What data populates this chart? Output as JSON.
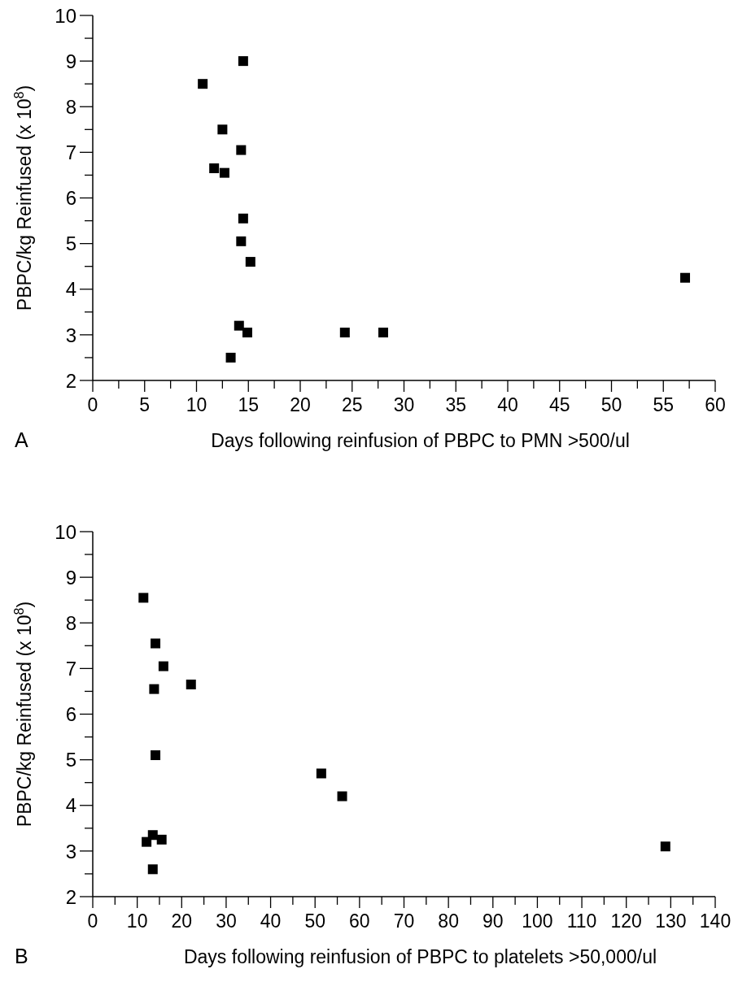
{
  "chart_data": [
    {
      "type": "scatter",
      "xlabel": "Days following reinfusion of PBPC to PMN >500/ul",
      "ylabel": "PBPC/kg Reinfused (x 10$^{8}$)",
      "annotations": [
        "A"
      ],
      "marker": "square",
      "grid": false,
      "xlim": [
        0,
        60
      ],
      "xticks": [
        0,
        {
          "value": 2.5,
          "label": null
        },
        5,
        {
          "value": 7.5,
          "label": null
        },
        10,
        {
          "value": 12.5,
          "label": null
        },
        15,
        {
          "value": 17.5,
          "label": null
        },
        20,
        {
          "value": 22.5,
          "label": null
        },
        25,
        {
          "value": 27.5,
          "label": null
        },
        30,
        {
          "value": 32.5,
          "label": null
        },
        35,
        {
          "value": 37.5,
          "label": null
        },
        40,
        {
          "value": 42.5,
          "label": null
        },
        45,
        {
          "value": 47.5,
          "label": null
        },
        50,
        {
          "value": 52.5,
          "label": null
        },
        55,
        {
          "value": 57.5,
          "label": null
        },
        60
      ],
      "ylim": [
        2,
        10
      ],
      "yticks": [
        2,
        {
          "value": 2.5,
          "label": null
        },
        3,
        {
          "value": 3.5,
          "label": null
        },
        4,
        {
          "value": 4.5,
          "label": null
        },
        5,
        {
          "value": 5.5,
          "label": null
        },
        6,
        {
          "value": 6.5,
          "label": null
        },
        7,
        {
          "value": 7.5,
          "label": null
        },
        8,
        {
          "value": 8.5,
          "label": null
        },
        9,
        {
          "value": 9.5,
          "label": null
        },
        10
      ],
      "series": [
        {
          "color": "#000000",
          "x": [
            10.6,
            14.5,
            12.5,
            14.3,
            11.7,
            12.7,
            14.5,
            14.3,
            15.2,
            14.1,
            14.9,
            13.3,
            24.3,
            28.0,
            57.1
          ],
          "values": [
            8.5,
            9.0,
            7.5,
            7.05,
            6.65,
            6.55,
            5.55,
            5.05,
            4.6,
            3.2,
            3.05,
            2.5,
            3.05,
            3.05,
            4.25
          ]
        }
      ]
    },
    {
      "type": "scatter",
      "xlabel": "Days following reinfusion of PBPC to platelets >50,000/ul",
      "ylabel": "PBPC/kg Reinfused (x 10$^{8}$)",
      "annotations": [
        "B"
      ],
      "marker": "square",
      "grid": false,
      "xlim": [
        0,
        140
      ],
      "xticks": [
        0,
        {
          "value": 5,
          "label": null
        },
        10,
        {
          "value": 15,
          "label": null
        },
        20,
        {
          "value": 25,
          "label": null
        },
        30,
        {
          "value": 35,
          "label": null
        },
        40,
        {
          "value": 45,
          "label": null
        },
        50,
        {
          "value": 55,
          "label": null
        },
        60,
        {
          "value": 65,
          "label": null
        },
        70,
        {
          "value": 75,
          "label": null
        },
        80,
        {
          "value": 85,
          "label": null
        },
        90,
        {
          "value": 95,
          "label": null
        },
        100,
        {
          "value": 105,
          "label": null
        },
        110,
        {
          "value": 115,
          "label": null
        },
        120,
        {
          "value": 125,
          "label": null
        },
        130,
        {
          "value": 135,
          "label": null
        },
        140
      ],
      "ylim": [
        2,
        10
      ],
      "yticks": [
        2,
        {
          "value": 2.5,
          "label": null
        },
        3,
        {
          "value": 3.5,
          "label": null
        },
        4,
        {
          "value": 4.5,
          "label": null
        },
        5,
        {
          "value": 5.5,
          "label": null
        },
        6,
        {
          "value": 6.5,
          "label": null
        },
        7,
        {
          "value": 7.5,
          "label": null
        },
        8,
        {
          "value": 8.5,
          "label": null
        },
        9,
        {
          "value": 9.5,
          "label": null
        },
        10
      ],
      "series": [
        {
          "color": "#000000",
          "x": [
            11.4,
            14.1,
            15.9,
            13.8,
            22.1,
            14.1,
            51.4,
            56.1,
            13.5,
            12.1,
            15.5,
            13.5,
            128.8
          ],
          "values": [
            8.55,
            7.55,
            7.05,
            6.55,
            6.65,
            5.1,
            4.7,
            4.2,
            3.35,
            3.2,
            3.25,
            2.6,
            3.1
          ]
        }
      ]
    }
  ]
}
